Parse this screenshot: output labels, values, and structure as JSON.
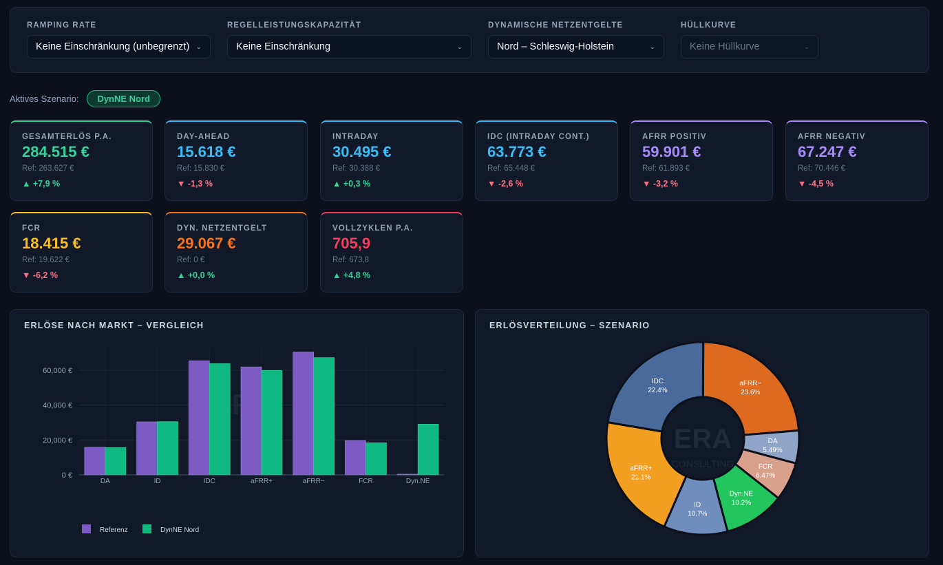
{
  "filters": [
    {
      "label": "RAMPING RATE",
      "value": "Keine Einschränkung (unbegrenzt)",
      "disabled": false
    },
    {
      "label": "REGELLEISTUNGSKAPAZITÄT",
      "value": "Keine Einschränkung",
      "disabled": false
    },
    {
      "label": "DYNAMISCHE NETZENTGELTE",
      "value": "Nord – Schleswig-Holstein",
      "disabled": false
    },
    {
      "label": "HÜLLKURVE",
      "value": "Keine Hüllkurve",
      "disabled": true
    }
  ],
  "scenario": {
    "label": "Aktives Szenario:",
    "badge": "DynNE Nord"
  },
  "kpis": [
    {
      "label": "GESAMTERLÖS P.A.",
      "value": "284.515 €",
      "ref": "Ref: 263.627 €",
      "delta": "▲ +7,9 %",
      "trend": "up",
      "color": "#34d399"
    },
    {
      "label": "DAY-AHEAD",
      "value": "15.618 €",
      "ref": "Ref: 15.830 €",
      "delta": "▼ -1,3 %",
      "trend": "down",
      "color": "#38bdf8"
    },
    {
      "label": "INTRADAY",
      "value": "30.495 €",
      "ref": "Ref: 30.388 €",
      "delta": "▲ +0,3 %",
      "trend": "up",
      "color": "#38bdf8"
    },
    {
      "label": "IDC (INTRADAY CONT.)",
      "value": "63.773 €",
      "ref": "Ref: 65.448 €",
      "delta": "▼ -2,6 %",
      "trend": "down",
      "color": "#38bdf8"
    },
    {
      "label": "AFRR POSITIV",
      "value": "59.901 €",
      "ref": "Ref: 61.893 €",
      "delta": "▼ -3,2 %",
      "trend": "down",
      "color": "#a78bfa"
    },
    {
      "label": "AFRR NEGATIV",
      "value": "67.247 €",
      "ref": "Ref: 70.446 €",
      "delta": "▼ -4,5 %",
      "trend": "down",
      "color": "#a78bfa"
    },
    {
      "label": "FCR",
      "value": "18.415 €",
      "ref": "Ref: 19.622 €",
      "delta": "▼ -6,2 %",
      "trend": "down",
      "color": "#fbbf24"
    },
    {
      "label": "DYN. NETZENTGELT",
      "value": "29.067 €",
      "ref": "Ref: 0 €",
      "delta": "▲ +0,0 %",
      "trend": "up",
      "color": "#f97316"
    },
    {
      "label": "VOLLZYKLEN P.A.",
      "value": "705,9",
      "ref": "Ref: 673,8",
      "delta": "▲ +4,8 %",
      "trend": "up",
      "color": "#f43f5e"
    }
  ],
  "bar_panel_title": "ERLÖSE NACH MARKT – VERGLEICH",
  "pie_panel_title": "ERLÖSVERTEILUNG – SZENARIO",
  "watermark": {
    "line1": "ERA",
    "line2": "CONSULTING"
  },
  "chart_data": [
    {
      "type": "bar",
      "title": "ERLÖSE NACH MARKT – VERGLEICH",
      "categories": [
        "DA",
        "ID",
        "IDC",
        "aFRR+",
        "aFRR−",
        "FCR",
        "Dyn.NE"
      ],
      "series": [
        {
          "name": "Referenz",
          "color": "#7c5cc4",
          "values": [
            15830,
            30388,
            65448,
            61893,
            70446,
            19622,
            0
          ]
        },
        {
          "name": "DynNE Nord",
          "color": "#10b981",
          "values": [
            15618,
            30495,
            63773,
            59901,
            67247,
            18415,
            29067
          ]
        }
      ],
      "ylim": [
        0,
        73000
      ],
      "yticks": [
        0,
        20000,
        40000,
        60000
      ],
      "ytick_labels": [
        "0 €",
        "20,000 €",
        "40,000 €",
        "60,000 €"
      ],
      "legend_position": "bottom-left"
    },
    {
      "type": "pie",
      "title": "ERLÖSVERTEILUNG – SZENARIO",
      "hole": true,
      "slices": [
        {
          "label": "aFRR−",
          "pct": "23.6%",
          "value": 23.6,
          "color": "#dd6a1f"
        },
        {
          "label": "DA",
          "pct": "5.49%",
          "value": 5.49,
          "color": "#8ea5c8"
        },
        {
          "label": "FCR",
          "pct": "6.47%",
          "value": 6.47,
          "color": "#d9a08b"
        },
        {
          "label": "Dyn.NE",
          "pct": "10.2%",
          "value": 10.2,
          "color": "#22c55e"
        },
        {
          "label": "ID",
          "pct": "10.7%",
          "value": 10.7,
          "color": "#6f8ebd"
        },
        {
          "label": "aFRR+",
          "pct": "21.1%",
          "value": 21.1,
          "color": "#f3a022"
        },
        {
          "label": "IDC",
          "pct": "22.4%",
          "value": 22.4,
          "color": "#4a6a9c"
        }
      ]
    }
  ]
}
